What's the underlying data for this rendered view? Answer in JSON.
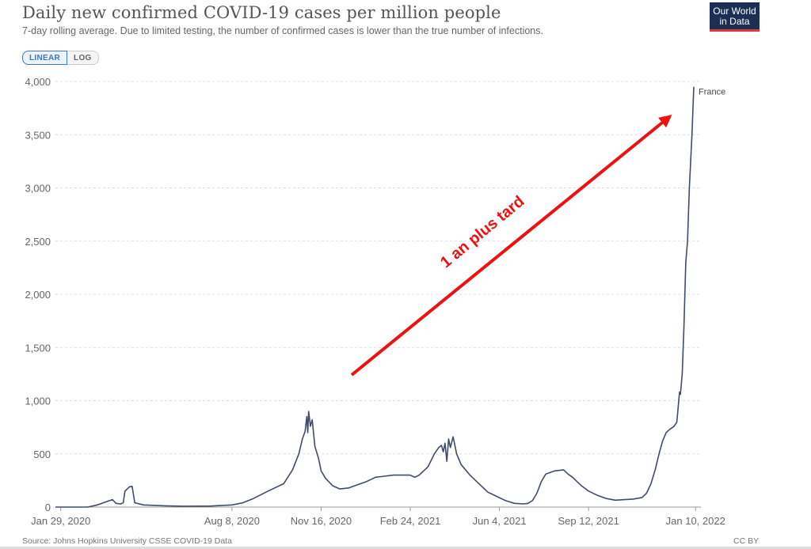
{
  "header": {
    "title": "Daily new confirmed COVID-19 cases per million people",
    "subtitle": "7-day rolling average. Due to limited testing, the number of confirmed cases is lower than the true number of infections."
  },
  "logo": {
    "line1": "Our World",
    "line2": "in Data"
  },
  "scale_toggle": {
    "linear_label": "LINEAR",
    "log_label": "LOG",
    "selected": "LINEAR"
  },
  "footer": {
    "source": "Source: Johns Hopkins University CSSE COVID-19 Data",
    "license": "CC BY"
  },
  "annotation": {
    "text": "1 an plus tard",
    "color": "#ee1111"
  },
  "colors": {
    "series": "#3f4c6b",
    "grid": "#dddddd",
    "axis_text": "#666666"
  },
  "chart_data": {
    "type": "line",
    "title": "Daily new confirmed COVID-19 cases per million people",
    "xlabel": "",
    "ylabel": "",
    "xlim": [
      "2020-01-23",
      "2022-01-16"
    ],
    "ylim": [
      0,
      4000
    ],
    "grid": true,
    "y_ticks": [
      0,
      500,
      1000,
      1500,
      2000,
      2500,
      3000,
      3500,
      4000
    ],
    "y_tick_labels": [
      "0",
      "500",
      "1,000",
      "1,500",
      "2,000",
      "2,500",
      "3,000",
      "3,500",
      "4,000"
    ],
    "x_ticks": [
      "2020-01-29",
      "2020-08-08",
      "2020-11-16",
      "2021-02-24",
      "2021-06-04",
      "2021-09-12",
      "2022-01-10"
    ],
    "x_tick_labels": [
      "Jan 29, 2020",
      "Aug 8, 2020",
      "Nov 16, 2020",
      "Feb 24, 2021",
      "Jun 4, 2021",
      "Sep 12, 2021",
      "Jan 10, 2022"
    ],
    "series": [
      {
        "name": "France",
        "points": [
          [
            "2020-01-23",
            0
          ],
          [
            "2020-02-28",
            0
          ],
          [
            "2020-03-10",
            20
          ],
          [
            "2020-03-20",
            50
          ],
          [
            "2020-03-27",
            70
          ],
          [
            "2020-03-31",
            35
          ],
          [
            "2020-04-05",
            30
          ],
          [
            "2020-04-08",
            40
          ],
          [
            "2020-04-10",
            150
          ],
          [
            "2020-04-15",
            190
          ],
          [
            "2020-04-18",
            195
          ],
          [
            "2020-04-21",
            40
          ],
          [
            "2020-05-01",
            20
          ],
          [
            "2020-05-25",
            12
          ],
          [
            "2020-06-15",
            8
          ],
          [
            "2020-07-15",
            10
          ],
          [
            "2020-08-08",
            20
          ],
          [
            "2020-08-20",
            40
          ],
          [
            "2020-09-01",
            80
          ],
          [
            "2020-09-15",
            140
          ],
          [
            "2020-09-25",
            180
          ],
          [
            "2020-10-05",
            220
          ],
          [
            "2020-10-15",
            350
          ],
          [
            "2020-10-22",
            500
          ],
          [
            "2020-10-26",
            640
          ],
          [
            "2020-10-29",
            710
          ],
          [
            "2020-10-31",
            850
          ],
          [
            "2020-11-01",
            700
          ],
          [
            "2020-11-02",
            900
          ],
          [
            "2020-11-04",
            760
          ],
          [
            "2020-11-06",
            820
          ],
          [
            "2020-11-09",
            570
          ],
          [
            "2020-11-13",
            460
          ],
          [
            "2020-11-16",
            340
          ],
          [
            "2020-11-21",
            270
          ],
          [
            "2020-11-29",
            200
          ],
          [
            "2020-12-07",
            170
          ],
          [
            "2020-12-17",
            180
          ],
          [
            "2020-12-27",
            210
          ],
          [
            "2021-01-06",
            240
          ],
          [
            "2021-01-16",
            280
          ],
          [
            "2021-01-26",
            290
          ],
          [
            "2021-02-05",
            300
          ],
          [
            "2021-02-15",
            300
          ],
          [
            "2021-02-24",
            300
          ],
          [
            "2021-03-01",
            280
          ],
          [
            "2021-03-06",
            300
          ],
          [
            "2021-03-16",
            380
          ],
          [
            "2021-03-23",
            500
          ],
          [
            "2021-03-28",
            560
          ],
          [
            "2021-03-31",
            580
          ],
          [
            "2021-04-02",
            520
          ],
          [
            "2021-04-04",
            600
          ],
          [
            "2021-04-06",
            430
          ],
          [
            "2021-04-08",
            640
          ],
          [
            "2021-04-10",
            560
          ],
          [
            "2021-04-13",
            660
          ],
          [
            "2021-04-17",
            500
          ],
          [
            "2021-04-22",
            400
          ],
          [
            "2021-05-02",
            300
          ],
          [
            "2021-05-12",
            220
          ],
          [
            "2021-05-22",
            140
          ],
          [
            "2021-06-01",
            100
          ],
          [
            "2021-06-11",
            60
          ],
          [
            "2021-06-21",
            35
          ],
          [
            "2021-07-01",
            30
          ],
          [
            "2021-07-06",
            35
          ],
          [
            "2021-07-11",
            60
          ],
          [
            "2021-07-16",
            130
          ],
          [
            "2021-07-21",
            240
          ],
          [
            "2021-07-26",
            310
          ],
          [
            "2021-08-05",
            340
          ],
          [
            "2021-08-15",
            350
          ],
          [
            "2021-08-20",
            310
          ],
          [
            "2021-08-25",
            280
          ],
          [
            "2021-08-30",
            240
          ],
          [
            "2021-09-04",
            200
          ],
          [
            "2021-09-12",
            150
          ],
          [
            "2021-09-22",
            110
          ],
          [
            "2021-10-02",
            80
          ],
          [
            "2021-10-12",
            65
          ],
          [
            "2021-10-22",
            70
          ],
          [
            "2021-11-01",
            75
          ],
          [
            "2021-11-11",
            90
          ],
          [
            "2021-11-16",
            130
          ],
          [
            "2021-11-21",
            220
          ],
          [
            "2021-11-26",
            360
          ],
          [
            "2021-11-30",
            500
          ],
          [
            "2021-12-04",
            620
          ],
          [
            "2021-12-08",
            700
          ],
          [
            "2021-12-12",
            730
          ],
          [
            "2021-12-17",
            760
          ],
          [
            "2021-12-20",
            800
          ],
          [
            "2021-12-23",
            1080
          ],
          [
            "2021-12-24",
            1060
          ],
          [
            "2021-12-26",
            1250
          ],
          [
            "2021-12-28",
            1700
          ],
          [
            "2021-12-30",
            2300
          ],
          [
            "2022-01-01",
            2500
          ],
          [
            "2022-01-03",
            3000
          ],
          [
            "2022-01-06",
            3500
          ],
          [
            "2022-01-08",
            3950
          ]
        ]
      }
    ]
  }
}
